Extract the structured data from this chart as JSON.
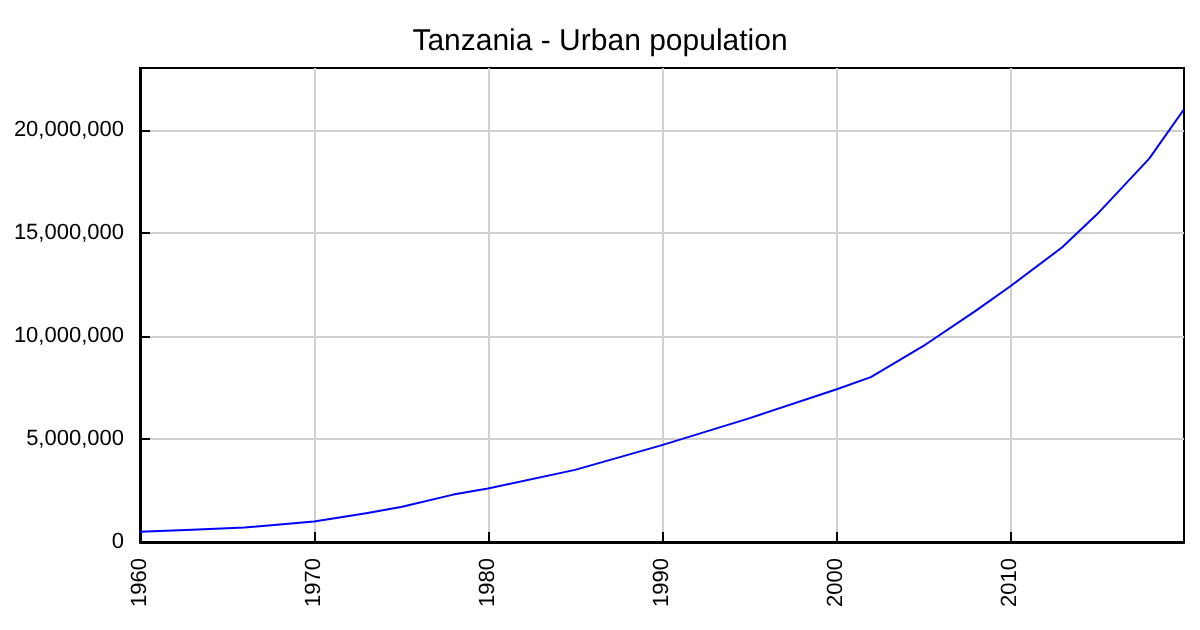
{
  "chart_data": {
    "type": "line",
    "title": "Tanzania - Urban population",
    "x": [
      1960,
      1963,
      1966,
      1970,
      1973,
      1975,
      1978,
      1980,
      1985,
      1990,
      1995,
      2000,
      2002,
      2005,
      2008,
      2010,
      2013,
      2015,
      2018,
      2020
    ],
    "series": [
      {
        "color": "#0000ff",
        "values": [
          500000,
          600000,
          700000,
          1000000,
          1400000,
          1700000,
          2300000,
          2600000,
          3500000,
          4700000,
          6000000,
          7400000,
          8000000,
          9500000,
          11200000,
          12400000,
          14300000,
          15900000,
          18600000,
          21000000
        ]
      }
    ],
    "xlim": [
      1960,
      2020
    ],
    "xticks": [
      1960,
      1970,
      1980,
      1990,
      2000,
      2010
    ],
    "ylim": [
      0,
      23000000
    ],
    "yticks": [
      {
        "value": 0,
        "label": "0"
      },
      {
        "value": 5000000,
        "label": "5,000,000"
      },
      {
        "value": 10000000,
        "label": "10,000,000"
      },
      {
        "value": 15000000,
        "label": "15,000,000"
      },
      {
        "value": 20000000,
        "label": "20,000,000"
      }
    ],
    "grid": true,
    "marker": "none",
    "line_style": "solid"
  }
}
